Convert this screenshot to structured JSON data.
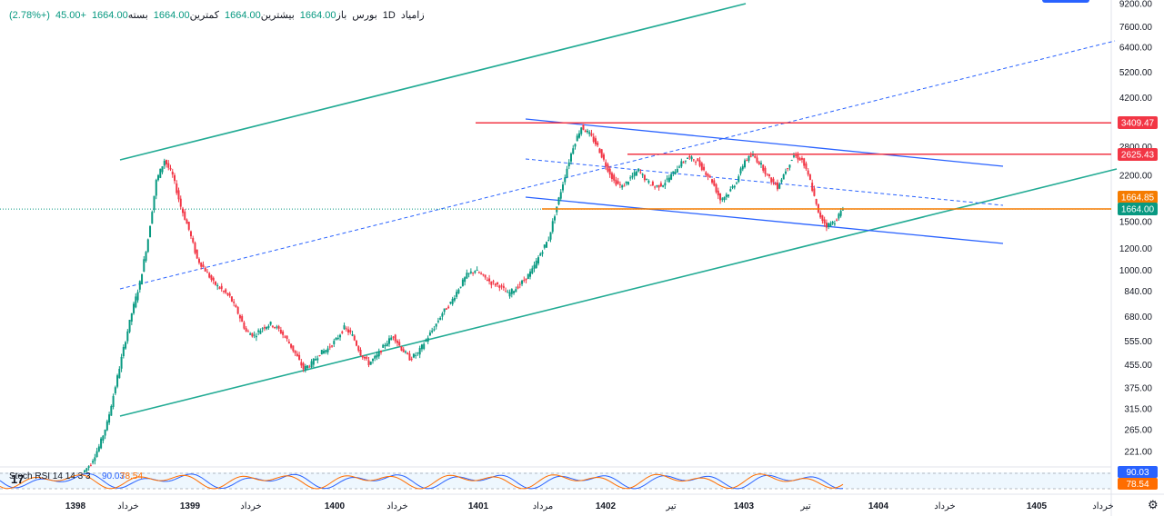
{
  "header": {
    "symbol": "زامیاد",
    "interval": "1D",
    "exchange": "بورس",
    "open_label": "باز",
    "open": "1664.00",
    "high_label": "بیشترین",
    "high": "1664.00",
    "low_label": "کمترین",
    "low": "1664.00",
    "close_label": "بسته",
    "close": "1664.00",
    "change": "+45.00",
    "change_pct": "(+2.78%)"
  },
  "chart_data": {
    "type": "candlestick",
    "y_scale": "log",
    "y_ticks": [
      "9200.00",
      "7600.00",
      "6400.00",
      "5200.00",
      "4200.00",
      "2800.00",
      "2200.00",
      "1500.00",
      "1200.00",
      "1000.00",
      "840.00",
      "680.00",
      "555.00",
      "455.00",
      "375.00",
      "315.00",
      "265.00",
      "221.00"
    ],
    "x_ticks": [
      {
        "label": "1398",
        "bold": true
      },
      {
        "label": "خرداد",
        "bold": false
      },
      {
        "label": "1399",
        "bold": true
      },
      {
        "label": "خرداد",
        "bold": false
      },
      {
        "label": "1400",
        "bold": true
      },
      {
        "label": "خرداد",
        "bold": false
      },
      {
        "label": "1401",
        "bold": true
      },
      {
        "label": "مرداد",
        "bold": false
      },
      {
        "label": "1402",
        "bold": true
      },
      {
        "label": "تیر",
        "bold": false
      },
      {
        "label": "1403",
        "bold": true
      },
      {
        "label": "تیر",
        "bold": false
      },
      {
        "label": "1404",
        "bold": true
      },
      {
        "label": "خرداد",
        "bold": false
      },
      {
        "label": "1405",
        "bold": true
      },
      {
        "label": "خرداد",
        "bold": false
      }
    ],
    "price_tags": [
      {
        "value": "3409.47",
        "color": "#f23645"
      },
      {
        "value": "2625.43",
        "color": "#f23645"
      },
      {
        "value": "1664.85",
        "color": "#f57c00"
      },
      {
        "value": "1664.00",
        "color": "#089981"
      }
    ],
    "horizontal_levels": [
      {
        "value": 3409.47,
        "color": "#f23645"
      },
      {
        "value": 2625.43,
        "color": "#f23645"
      },
      {
        "value": 1664.85,
        "color": "#f57c00"
      }
    ],
    "last_price": 1664.0,
    "approx_close_series": [
      185,
      200,
      230,
      280,
      380,
      520,
      700,
      900,
      1300,
      2100,
      2500,
      2200,
      1700,
      1400,
      1100,
      1000,
      900,
      850,
      800,
      700,
      600,
      580,
      620,
      640,
      610,
      560,
      500,
      440,
      460,
      500,
      520,
      560,
      620,
      580,
      500,
      460,
      490,
      540,
      580,
      520,
      480,
      500,
      560,
      620,
      700,
      760,
      860,
      960,
      1000,
      950,
      900,
      880,
      820,
      860,
      920,
      1000,
      1150,
      1300,
      1700,
      2200,
      2800,
      3300,
      3100,
      2800,
      2400,
      2100,
      2000,
      2150,
      2300,
      2100,
      2000,
      2050,
      2200,
      2400,
      2550,
      2500,
      2300,
      2100,
      1800,
      1900,
      2100,
      2500,
      2600,
      2400,
      2150,
      2000,
      2300,
      2600,
      2500,
      2100,
      1600,
      1450,
      1500,
      1664
    ]
  },
  "indicator": {
    "label": "Stoch RSI 14 14 3 3",
    "k_value": "90.03",
    "d_value": "78.54",
    "k_color": "#2962ff",
    "d_color": "#ff6d00"
  },
  "colors": {
    "up": "#089981",
    "down": "#f23645",
    "channel_green": "#22ab94",
    "channel_blue": "#2962ff"
  }
}
